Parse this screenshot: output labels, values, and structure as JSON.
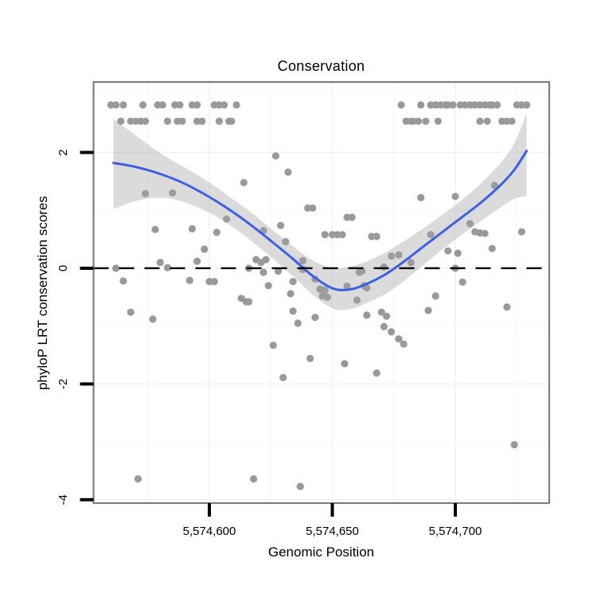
{
  "chart_data": {
    "type": "scatter",
    "title": "Conservation",
    "xlabel": "Genomic Position",
    "ylabel": "phyloP LRT conservation scores",
    "legend": "none",
    "grid": "on",
    "x_axis": {
      "min": 5574552.9,
      "max": 5574738.2
    },
    "y_axis": {
      "min": -4.058,
      "max": 3.218
    },
    "x_ticks": [
      {
        "value": 5574600,
        "label": "5,574,600"
      },
      {
        "value": 5574650,
        "label": "5,574,650"
      },
      {
        "value": 5574700,
        "label": "5,574,700"
      }
    ],
    "x_minor": [
      5574575,
      5574625,
      5574675,
      5574725
    ],
    "y_ticks": [
      {
        "value": 2,
        "label": "2"
      },
      {
        "value": 0,
        "label": "0"
      },
      {
        "value": -2,
        "label": "-2"
      },
      {
        "value": -4,
        "label": "-4"
      }
    ],
    "y_minor": [
      3,
      1,
      -1,
      -3
    ],
    "hline": {
      "y": 0,
      "style": "dashed",
      "color": "#000000"
    },
    "colors": {
      "point": "#999999",
      "smooth": "#3D5FE8",
      "band": "rgba(160,160,160,0.38)",
      "grid_major": "#f0f0f0",
      "grid_minor": "#f7f7f7",
      "panel_border": "#7d7d7d",
      "tick": "#000000"
    },
    "points": [
      [
        5574560,
        2.82
      ],
      [
        5574562,
        2.82
      ],
      [
        5574565,
        2.82
      ],
      [
        5574573,
        2.82
      ],
      [
        5574579,
        2.82
      ],
      [
        5574581,
        2.82
      ],
      [
        5574586,
        2.82
      ],
      [
        5574588,
        2.82
      ],
      [
        5574593,
        2.82
      ],
      [
        5574595,
        2.82
      ],
      [
        5574602,
        2.82
      ],
      [
        5574604,
        2.82
      ],
      [
        5574606,
        2.82
      ],
      [
        5574611,
        2.82
      ],
      [
        5574678,
        2.82
      ],
      [
        5574686,
        2.82
      ],
      [
        5574690,
        2.82
      ],
      [
        5574692,
        2.82
      ],
      [
        5574694,
        2.82
      ],
      [
        5574696,
        2.82
      ],
      [
        5574697,
        2.82
      ],
      [
        5574699,
        2.82
      ],
      [
        5574702,
        2.82
      ],
      [
        5574704,
        2.82
      ],
      [
        5574706,
        2.82
      ],
      [
        5574708,
        2.82
      ],
      [
        5574710,
        2.82
      ],
      [
        5574712,
        2.82
      ],
      [
        5574714,
        2.82
      ],
      [
        5574715,
        2.82
      ],
      [
        5574717,
        2.82
      ],
      [
        5574725,
        2.82
      ],
      [
        5574727,
        2.82
      ],
      [
        5574729,
        2.82
      ],
      [
        5574564,
        2.54
      ],
      [
        5574568,
        2.54
      ],
      [
        5574570,
        2.54
      ],
      [
        5574572,
        2.54
      ],
      [
        5574574,
        2.54
      ],
      [
        5574583,
        2.54
      ],
      [
        5574587,
        2.54
      ],
      [
        5574589,
        2.54
      ],
      [
        5574595,
        2.54
      ],
      [
        5574597,
        2.54
      ],
      [
        5574604,
        2.54
      ],
      [
        5574608,
        2.54
      ],
      [
        5574609,
        2.54
      ],
      [
        5574680,
        2.54
      ],
      [
        5574682,
        2.54
      ],
      [
        5574683,
        2.54
      ],
      [
        5574685,
        2.54
      ],
      [
        5574688,
        2.54
      ],
      [
        5574693,
        2.54
      ],
      [
        5574710,
        2.54
      ],
      [
        5574713,
        2.54
      ],
      [
        5574719,
        2.54
      ],
      [
        5574721,
        2.54
      ],
      [
        5574723,
        2.54
      ],
      [
        5574574,
        1.29
      ],
      [
        5574585,
        1.3
      ],
      [
        5574614,
        1.48
      ],
      [
        5574627,
        1.94
      ],
      [
        5574632,
        1.66
      ],
      [
        5574686,
        1.22
      ],
      [
        5574700,
        1.24
      ],
      [
        5574716,
        1.43
      ],
      [
        5574607,
        0.85
      ],
      [
        5574578,
        0.67
      ],
      [
        5574593,
        0.68
      ],
      [
        5574603,
        0.62
      ],
      [
        5574622,
        0.65
      ],
      [
        5574629,
        0.74
      ],
      [
        5574631,
        0.46
      ],
      [
        5574640,
        1.04
      ],
      [
        5574642,
        1.04
      ],
      [
        5574656,
        0.88
      ],
      [
        5574658,
        0.88
      ],
      [
        5574647,
        0.58
      ],
      [
        5574650,
        0.58
      ],
      [
        5574652,
        0.58
      ],
      [
        5574654,
        0.58
      ],
      [
        5574666,
        0.55
      ],
      [
        5574668,
        0.55
      ],
      [
        5574690,
        0.58
      ],
      [
        5574706,
        0.77
      ],
      [
        5574708,
        0.63
      ],
      [
        5574710,
        0.61
      ],
      [
        5574712,
        0.6
      ],
      [
        5574727,
        0.63
      ],
      [
        5574598,
        0.33
      ],
      [
        5574715,
        0.34
      ],
      [
        5574580,
        0.1
      ],
      [
        5574583,
        0.01
      ],
      [
        5574595,
        0.12
      ],
      [
        5574562,
        0.0
      ],
      [
        5574619,
        0.15
      ],
      [
        5574621,
        0.1
      ],
      [
        5574623,
        0.15
      ],
      [
        5574616,
        0.0
      ],
      [
        5574638,
        0.13
      ],
      [
        5574638,
        -0.02
      ],
      [
        5574671,
        0.02
      ],
      [
        5574674,
        0.21
      ],
      [
        5574677,
        0.23
      ],
      [
        5574682,
        0.1
      ],
      [
        5574697,
        0.3
      ],
      [
        5574701,
        0.26
      ],
      [
        5574700,
        0.0
      ],
      [
        5574565,
        -0.22
      ],
      [
        5574592,
        -0.21
      ],
      [
        5574600,
        -0.23
      ],
      [
        5574602,
        -0.23
      ],
      [
        5574622,
        -0.07
      ],
      [
        5574628,
        -0.05
      ],
      [
        5574643,
        -0.19
      ],
      [
        5574624,
        -0.3
      ],
      [
        5574634,
        -0.23
      ],
      [
        5574661,
        -0.07
      ],
      [
        5574662,
        -0.05
      ],
      [
        5574703,
        -0.24
      ],
      [
        5574645,
        -0.36
      ],
      [
        5574647,
        -0.38
      ],
      [
        5574646,
        -0.48
      ],
      [
        5574648,
        -0.5
      ],
      [
        5574656,
        -0.31
      ],
      [
        5574663,
        -0.3
      ],
      [
        5574664,
        -0.34
      ],
      [
        5574633,
        -0.44
      ],
      [
        5574613,
        -0.52
      ],
      [
        5574615,
        -0.58
      ],
      [
        5574616,
        -0.58
      ],
      [
        5574660,
        -0.55
      ],
      [
        5574692,
        -0.48
      ],
      [
        5574568,
        -0.76
      ],
      [
        5574577,
        -0.88
      ],
      [
        5574634,
        -0.74
      ],
      [
        5574664,
        -0.81
      ],
      [
        5574670,
        -0.76
      ],
      [
        5574672,
        -0.83
      ],
      [
        5574643,
        -0.85
      ],
      [
        5574636,
        -0.95
      ],
      [
        5574689,
        -0.73
      ],
      [
        5574721,
        -0.67
      ],
      [
        5574671,
        -1.01
      ],
      [
        5574674,
        -1.1
      ],
      [
        5574677,
        -1.22
      ],
      [
        5574626,
        -1.33
      ],
      [
        5574679,
        -1.31
      ],
      [
        5574641,
        -1.56
      ],
      [
        5574655,
        -1.65
      ],
      [
        5574668,
        -1.81
      ],
      [
        5574630,
        -1.89
      ],
      [
        5574571,
        -3.64
      ],
      [
        5574618,
        -3.64
      ],
      [
        5574637,
        -3.77
      ],
      [
        5574724,
        -3.05
      ]
    ],
    "smooth_line": [
      [
        5574561,
        1.82
      ],
      [
        5574570,
        1.75
      ],
      [
        5574580,
        1.63
      ],
      [
        5574590,
        1.46
      ],
      [
        5574600,
        1.23
      ],
      [
        5574610,
        0.96
      ],
      [
        5574618,
        0.71
      ],
      [
        5574626,
        0.44
      ],
      [
        5574634,
        0.16
      ],
      [
        5574641,
        -0.1
      ],
      [
        5574647,
        -0.28
      ],
      [
        5574652,
        -0.37
      ],
      [
        5574658,
        -0.36
      ],
      [
        5574664,
        -0.27
      ],
      [
        5574671,
        -0.12
      ],
      [
        5574678,
        0.08
      ],
      [
        5574686,
        0.34
      ],
      [
        5574694,
        0.6
      ],
      [
        5574702,
        0.86
      ],
      [
        5574710,
        1.12
      ],
      [
        5574718,
        1.42
      ],
      [
        5574724,
        1.7
      ],
      [
        5574729,
        2.03
      ]
    ],
    "confidence_band": {
      "x": [
        5574561,
        5574570,
        5574580,
        5574590,
        5574600,
        5574610,
        5574618,
        5574626,
        5574634,
        5574641,
        5574647,
        5574652,
        5574658,
        5574664,
        5574671,
        5574678,
        5574686,
        5574694,
        5574702,
        5574710,
        5574718,
        5574724,
        5574729
      ],
      "upper": [
        2.58,
        2.3,
        1.99,
        1.74,
        1.48,
        1.18,
        0.93,
        0.65,
        0.38,
        0.16,
        0.04,
        0.0,
        0.04,
        0.12,
        0.26,
        0.44,
        0.66,
        0.9,
        1.16,
        1.45,
        1.8,
        2.16,
        2.68
      ],
      "lower": [
        1.02,
        1.16,
        1.22,
        1.14,
        0.96,
        0.7,
        0.44,
        0.16,
        -0.14,
        -0.42,
        -0.62,
        -0.72,
        -0.7,
        -0.6,
        -0.46,
        -0.26,
        0.02,
        0.3,
        0.56,
        0.8,
        1.04,
        1.2,
        1.24
      ]
    }
  }
}
